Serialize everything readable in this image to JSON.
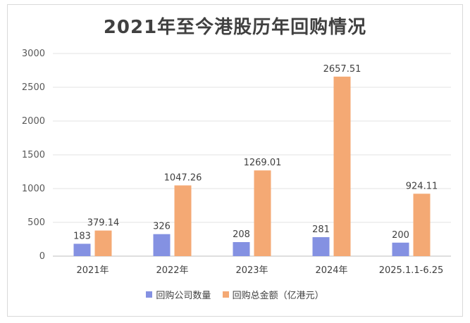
{
  "chart_data": {
    "type": "bar",
    "title": "2021年至今港股历年回购情况",
    "categories": [
      "2021年",
      "2022年",
      "2023年",
      "2024年",
      "2025.1.1-6.25"
    ],
    "series": [
      {
        "name": "回购公司数量",
        "color": "#8491e2",
        "values": [
          183,
          326,
          208,
          281,
          200
        ],
        "labels": [
          "183",
          "326",
          "208",
          "281",
          "200"
        ]
      },
      {
        "name": "回购总金额（亿港元）",
        "color": "#f4a974",
        "values": [
          379.14,
          1047.26,
          1269.01,
          2657.51,
          924.11
        ],
        "labels": [
          "379.14",
          "1047.26",
          "1269.01",
          "2657.51",
          "924.11"
        ]
      }
    ],
    "yticks": [
      "0",
      "500",
      "1000",
      "1500",
      "2000",
      "2500",
      "3000"
    ],
    "ylim": [
      0,
      3000
    ],
    "grid": true,
    "legend": "bottom"
  }
}
